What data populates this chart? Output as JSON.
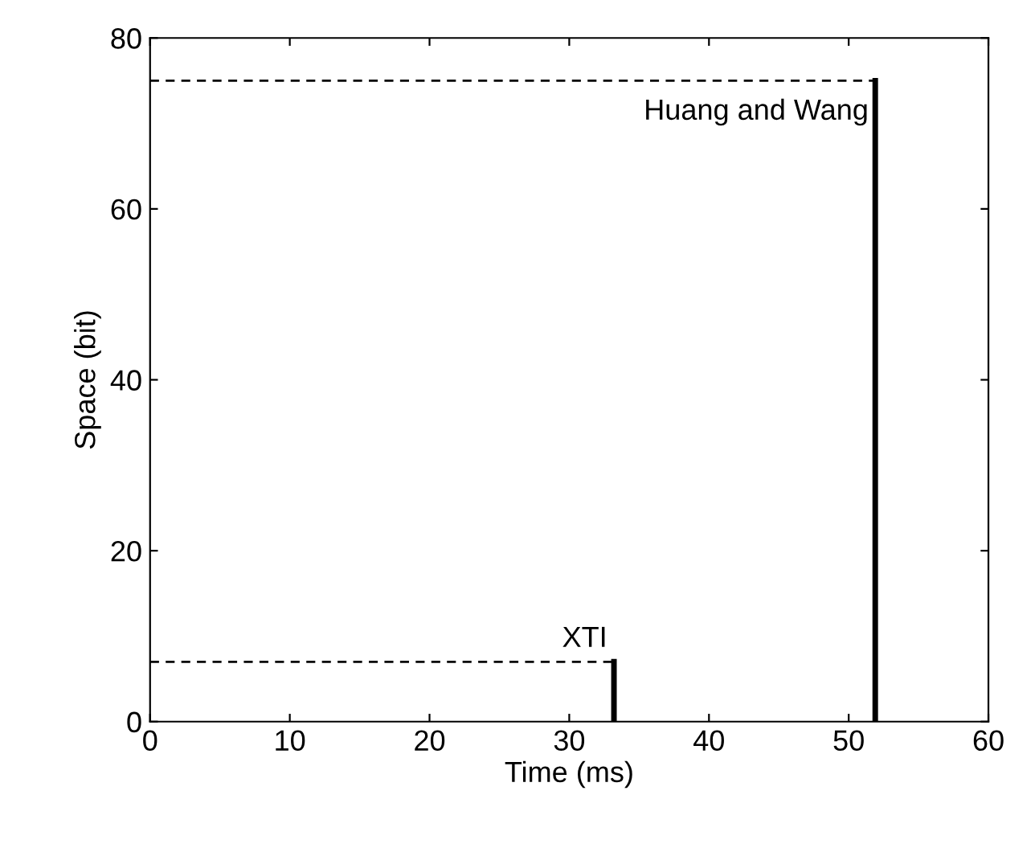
{
  "chart_data": {
    "type": "line",
    "xlabel": "Time (ms)",
    "ylabel": "Space (bit)",
    "xlim": [
      0,
      60
    ],
    "ylim": [
      0,
      80
    ],
    "xticks": [
      0,
      10,
      20,
      30,
      40,
      50,
      60
    ],
    "yticks": [
      0,
      20,
      40,
      60,
      80
    ],
    "grid": false,
    "marker": "none",
    "series": [
      {
        "color": "#000000",
        "x": [
          0,
          33.2
        ],
        "values": [
          7,
          7
        ],
        "line_style": "dashed"
      },
      {
        "color": "#000000",
        "x": [
          33.2,
          33.2
        ],
        "values": [
          0,
          7
        ],
        "line_style": "solid"
      },
      {
        "color": "#000000",
        "x": [
          0,
          51.9
        ],
        "values": [
          75,
          75
        ],
        "line_style": "dashed"
      },
      {
        "color": "#000000",
        "x": [
          51.9,
          51.9
        ],
        "values": [
          0,
          75
        ],
        "line_style": "solid"
      }
    ],
    "annotations": [
      {
        "text": "XTI",
        "x": 33.2,
        "y": 7
      },
      {
        "text": "Huang and Wang",
        "x": 51.9,
        "y": 75
      }
    ]
  }
}
